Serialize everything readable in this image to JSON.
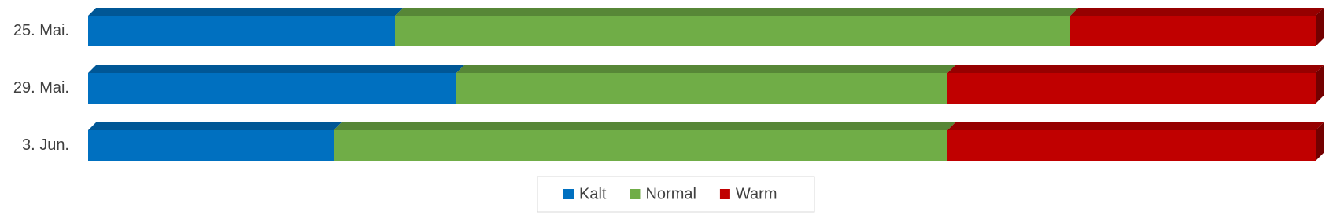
{
  "chart_data": {
    "type": "stacked_bar_100",
    "orientation": "horizontal",
    "categories": [
      "25. Mai.",
      "29. Mai.",
      "3. Jun."
    ],
    "series": [
      {
        "name": "Kalt",
        "color": "#0070c0",
        "values": [
          25,
          30,
          20
        ]
      },
      {
        "name": "Normal",
        "color": "#70ad47",
        "values": [
          55,
          40,
          50
        ]
      },
      {
        "name": "Warm",
        "color": "#c00000",
        "values": [
          20,
          30,
          30
        ]
      }
    ],
    "legend": "bottom"
  }
}
